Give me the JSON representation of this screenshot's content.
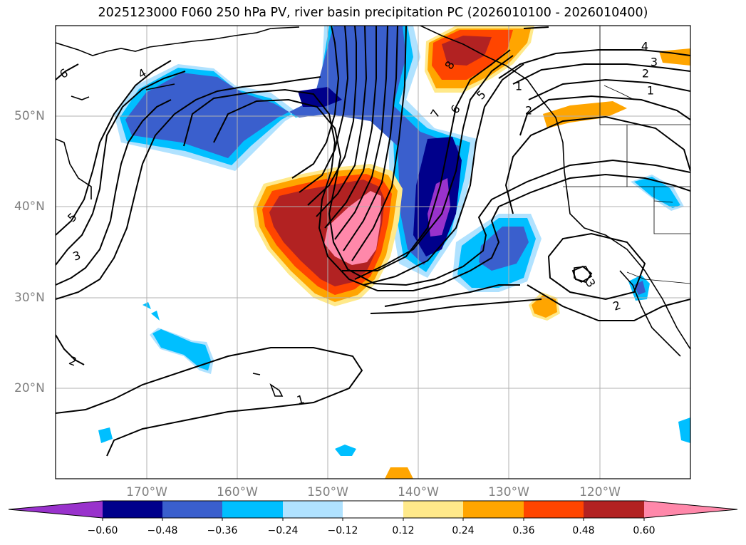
{
  "title": "2025123000 F060 250 hPa PV, river basin precipitation PC (2026010100 - 2026010400)",
  "lon_labels": [
    "170°W",
    "160°W",
    "150°W",
    "140°W",
    "130°W",
    "120°W"
  ],
  "lat_labels": [
    "50°N",
    "40°N",
    "30°N",
    "20°N"
  ],
  "colorbar": {
    "ticks": [
      "−0.60",
      "−0.48",
      "−0.36",
      "−0.24",
      "−0.12",
      "0.12",
      "0.24",
      "0.36",
      "0.48",
      "0.60"
    ],
    "colors": [
      "#9932cc",
      "#00008b",
      "#3a5fcd",
      "#00bfff",
      "#b0e2ff",
      "#ffffff",
      "#ffe98a",
      "#ffa500",
      "#ff4500",
      "#b22222",
      "#ff88aa"
    ]
  },
  "contour_labels": [
    "6",
    "4",
    "5",
    "3",
    "2",
    "1",
    "8",
    "7",
    "6",
    "5",
    "4",
    "3",
    "2",
    "1",
    "3",
    "2",
    "2",
    "1"
  ],
  "colors": {
    "axis_label": "#808080",
    "grid": "#b0b0b0",
    "contour": "#000000"
  }
}
